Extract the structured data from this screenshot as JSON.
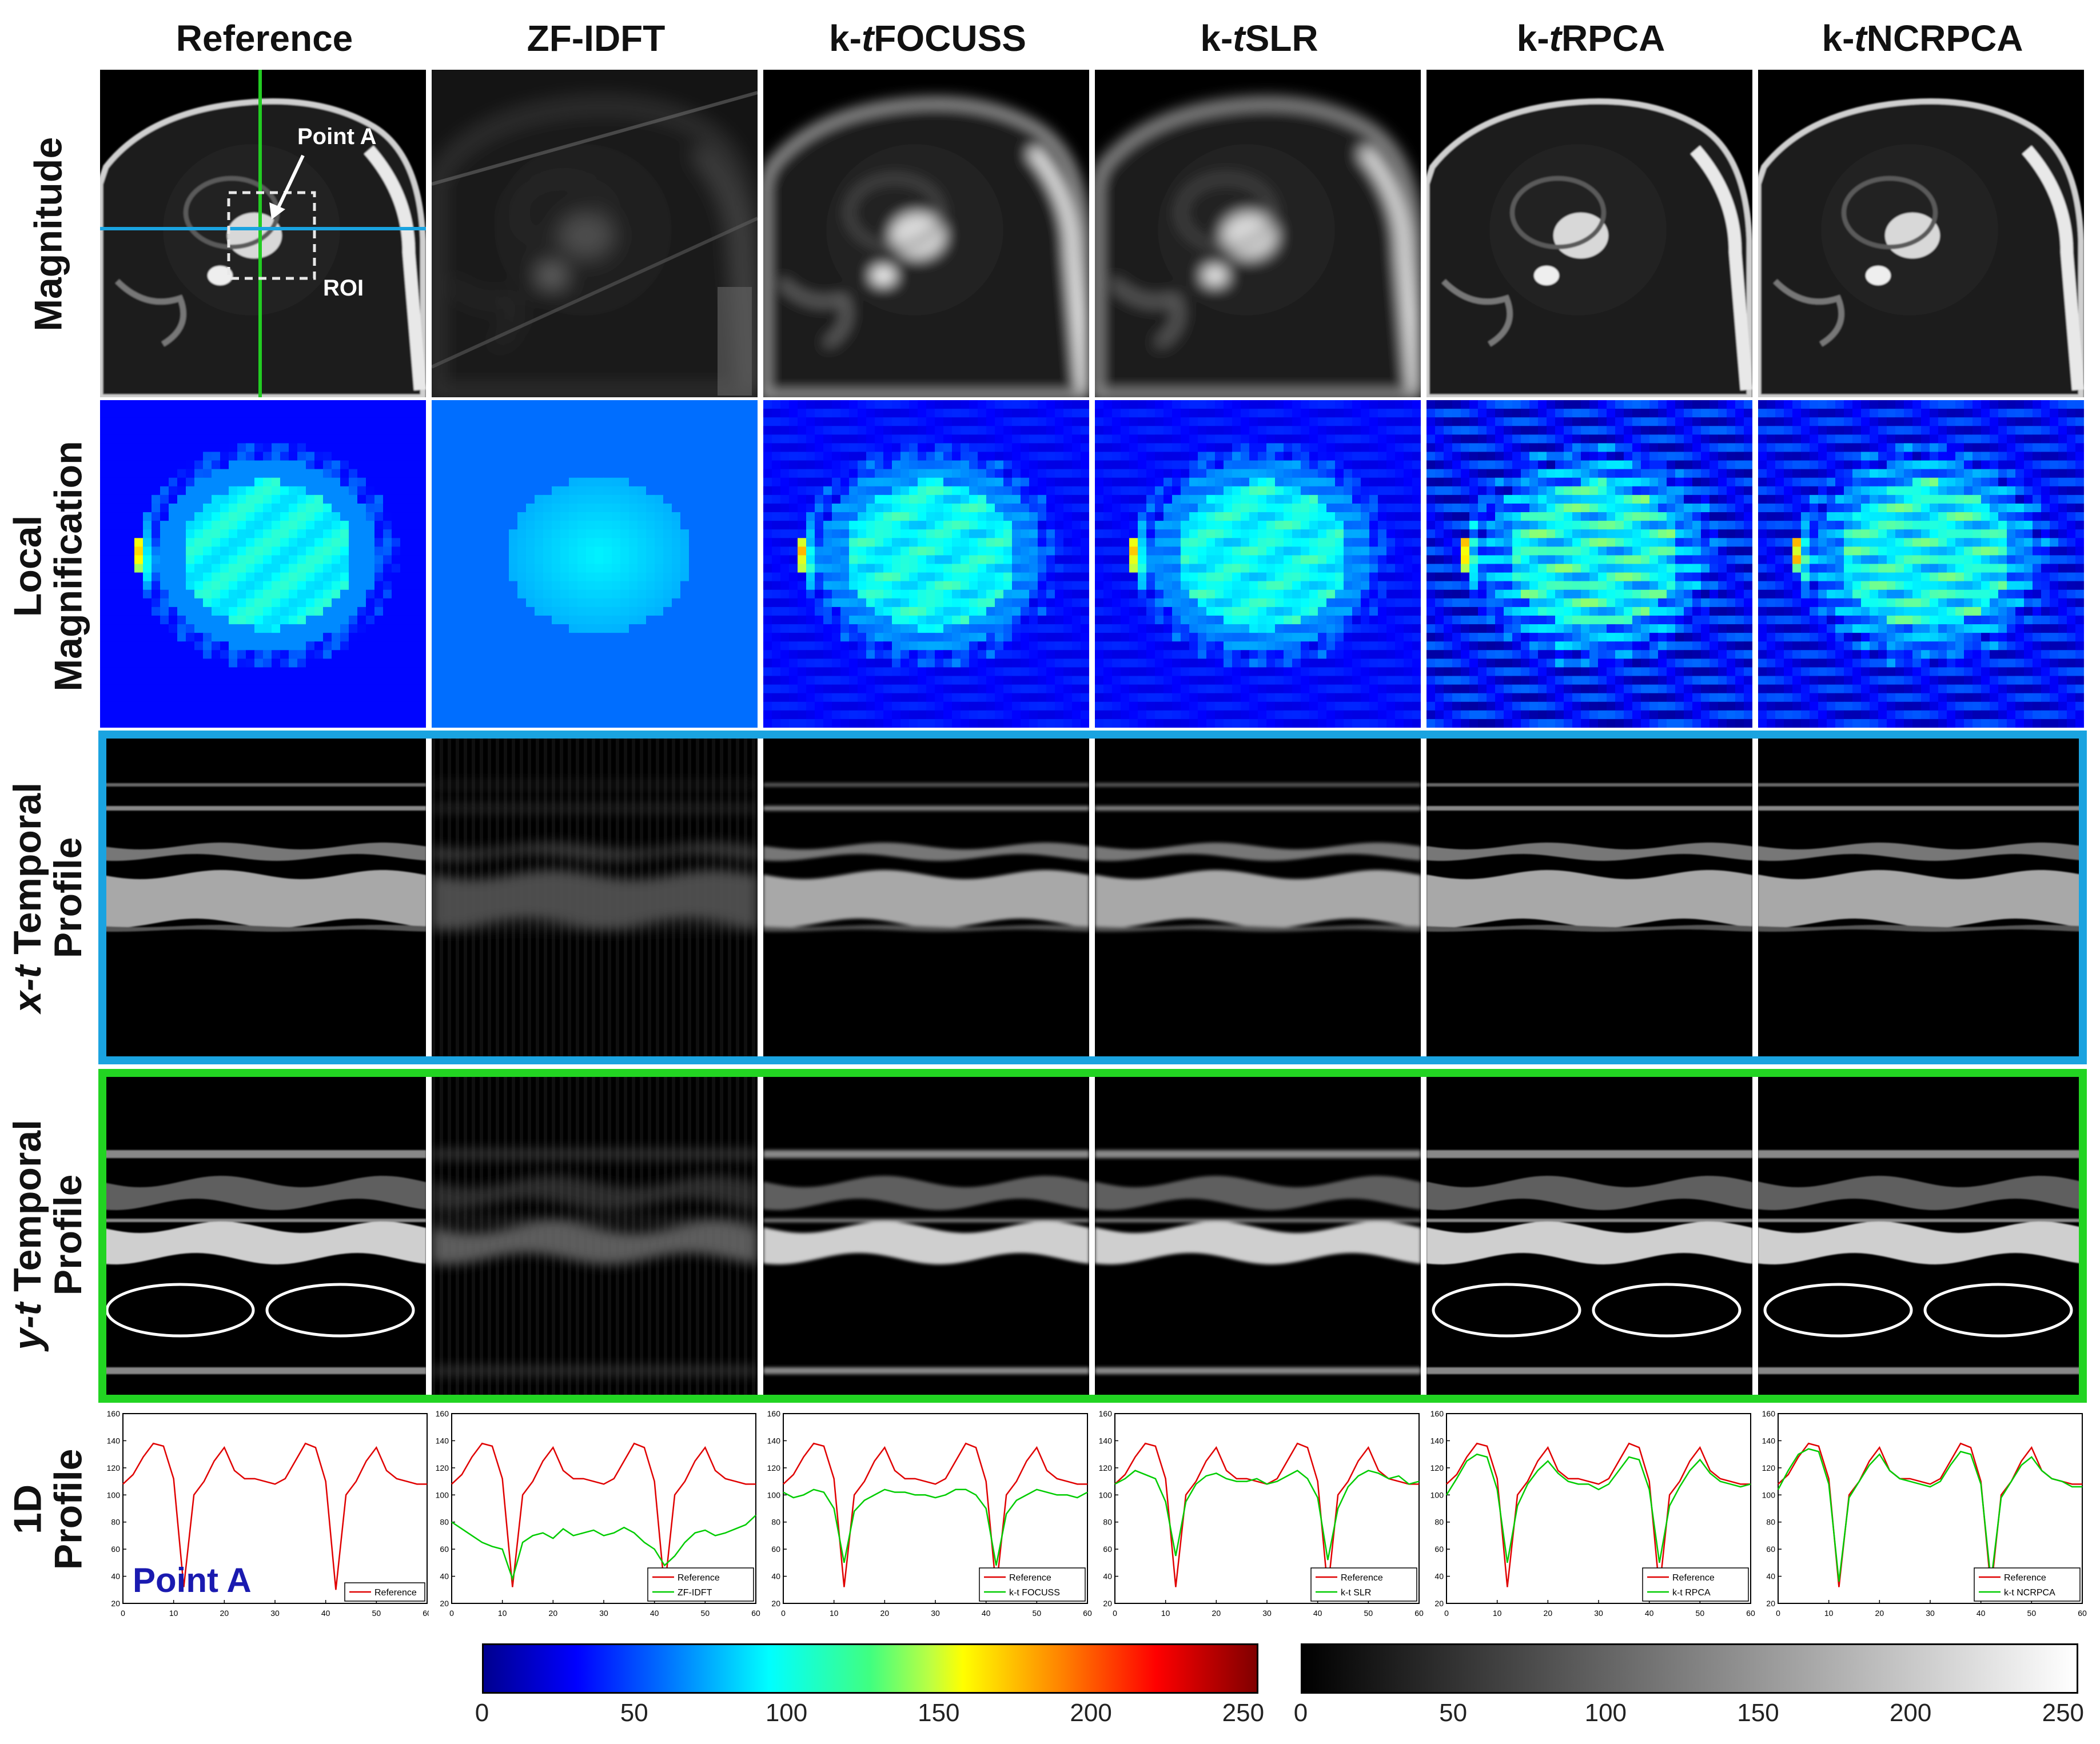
{
  "columns": [
    {
      "key": "reference",
      "pre": "",
      "it": "Reference",
      "post": ""
    },
    {
      "key": "zf-idft",
      "pre": "",
      "it": "ZF-IDFT",
      "post": ""
    },
    {
      "key": "kt-focuss",
      "pre": "k-",
      "it": "t",
      "post": " FOCUSS"
    },
    {
      "key": "kt-slr",
      "pre": "k-",
      "it": "t",
      "post": " SLR"
    },
    {
      "key": "kt-rpca",
      "pre": "k-",
      "it": "t",
      "post": " RPCA"
    },
    {
      "key": "kt-ncrpca",
      "pre": "k-",
      "it": "t",
      "post": " NCRPCA"
    }
  ],
  "rows": {
    "magnitude": "Magnitude",
    "local_1": "Local",
    "local_2": "Magnification",
    "xt_1_it": "x-t",
    "xt_1_rest": " Temporal",
    "xt_2": "Profile",
    "yt_1_it": "y-t",
    "yt_1_rest": " Temporal",
    "yt_2": "Profile",
    "oned_1": "1D",
    "oned_2": "Profile"
  },
  "annotations": {
    "point_a": "Point A",
    "roi": "ROI",
    "point_a_plot": "Point A"
  },
  "colors": {
    "xt_frame": "#1aa3e0",
    "yt_frame": "#22d422",
    "reference_line": "#e00000",
    "recon_line": "#00cc00",
    "crosshair_vertical": "#22cc22",
    "crosshair_horizontal": "#1aa3e0"
  },
  "profile_legends": [
    [
      "Reference"
    ],
    [
      "Reference",
      "ZF-IDFT"
    ],
    [
      "Reference",
      "k-t FOCUSS"
    ],
    [
      "Reference",
      "k-t SLR"
    ],
    [
      "Reference",
      "k-t RPCA"
    ],
    [
      "Reference",
      "k-t NCRPCA"
    ]
  ],
  "chart_data": {
    "type": "line",
    "title": "Point A",
    "xlim": [
      0,
      60
    ],
    "ylim": [
      20,
      160
    ],
    "x_ticks": [
      "0",
      "10",
      "20",
      "30",
      "40",
      "50",
      "60"
    ],
    "y_ticks": [
      "20",
      "40",
      "60",
      "80",
      "100",
      "120",
      "140",
      "160"
    ],
    "x": [
      0,
      2,
      4,
      6,
      8,
      10,
      12,
      14,
      16,
      18,
      20,
      22,
      24,
      26,
      28,
      30,
      32,
      34,
      36,
      38,
      40,
      42,
      44,
      46,
      48,
      50,
      52,
      54,
      56,
      58,
      60
    ],
    "series": [
      {
        "name": "Reference",
        "values": [
          108,
          115,
          128,
          138,
          136,
          112,
          32,
          100,
          110,
          125,
          135,
          118,
          112,
          112,
          110,
          108,
          112,
          125,
          138,
          135,
          110,
          30,
          100,
          110,
          125,
          135,
          118,
          112,
          110,
          108,
          108
        ]
      },
      {
        "name": "ZF-IDFT",
        "values": [
          80,
          75,
          70,
          65,
          62,
          60,
          38,
          65,
          70,
          72,
          68,
          75,
          70,
          72,
          74,
          70,
          72,
          76,
          72,
          65,
          60,
          48,
          55,
          65,
          72,
          74,
          70,
          72,
          75,
          78,
          85
        ]
      },
      {
        "name": "k-t FOCUSS",
        "values": [
          102,
          98,
          100,
          104,
          102,
          90,
          50,
          88,
          96,
          100,
          104,
          102,
          102,
          100,
          100,
          98,
          100,
          104,
          104,
          100,
          90,
          48,
          86,
          96,
          100,
          104,
          102,
          100,
          100,
          98,
          102
        ]
      },
      {
        "name": "k-t SLR",
        "values": [
          108,
          112,
          118,
          115,
          112,
          95,
          55,
          95,
          108,
          114,
          116,
          112,
          110,
          110,
          112,
          108,
          110,
          114,
          118,
          112,
          98,
          52,
          90,
          106,
          114,
          118,
          116,
          112,
          114,
          108,
          110
        ]
      },
      {
        "name": "k-t RPCA",
        "values": [
          100,
          112,
          125,
          130,
          128,
          104,
          50,
          92,
          108,
          118,
          125,
          116,
          110,
          108,
          108,
          104,
          108,
          118,
          128,
          126,
          104,
          50,
          92,
          106,
          118,
          126,
          116,
          110,
          108,
          106,
          108
        ]
      },
      {
        "name": "k-t NCRPCA",
        "values": [
          104,
          118,
          130,
          134,
          132,
          108,
          36,
          98,
          110,
          122,
          130,
          118,
          112,
          110,
          108,
          106,
          110,
          122,
          132,
          130,
          108,
          36,
          98,
          110,
          122,
          128,
          118,
          112,
          110,
          106,
          106
        ]
      }
    ]
  },
  "colorbars": [
    {
      "name": "jet",
      "ticks": [
        "0",
        "50",
        "100",
        "150",
        "200",
        "250"
      ],
      "range": [
        0,
        255
      ]
    },
    {
      "name": "gray",
      "ticks": [
        "0",
        "50",
        "100",
        "150",
        "200",
        "250"
      ],
      "range": [
        0,
        255
      ]
    }
  ]
}
